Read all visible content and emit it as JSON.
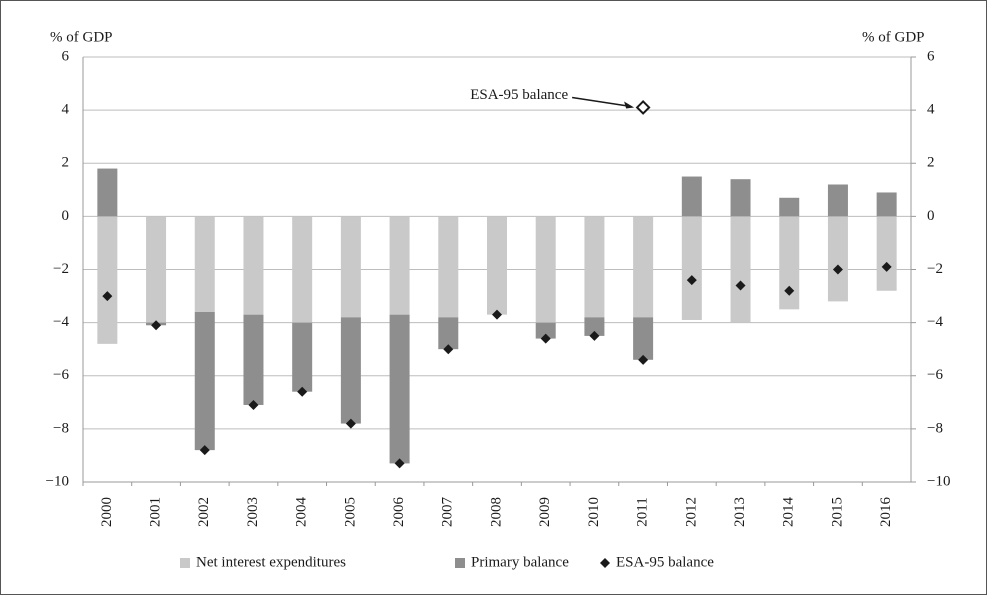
{
  "chart_data": {
    "type": "bar",
    "stacked": true,
    "y_label_left": "% of GDP",
    "y_label_right": "% of GDP",
    "categories": [
      "2000",
      "2001",
      "2002",
      "2003",
      "2004",
      "2005",
      "2006",
      "2007",
      "2008",
      "2009",
      "2010",
      "2011",
      "2012",
      "2013",
      "2014",
      "2015",
      "2016"
    ],
    "series": [
      {
        "name": "Net interest expenditures",
        "type": "bar",
        "color": "#c9c9c9",
        "values": [
          -4.8,
          -4.0,
          -3.6,
          -3.7,
          -4.0,
          -3.8,
          -3.7,
          -3.8,
          -3.7,
          -4.0,
          -3.8,
          -3.8,
          -3.9,
          -4.0,
          -3.5,
          -3.2,
          -2.8
        ]
      },
      {
        "name": "Primary balance",
        "type": "bar",
        "color": "#8e8e8e",
        "values": [
          1.8,
          -0.1,
          -5.2,
          -3.4,
          -2.6,
          -4.0,
          -5.6,
          -1.2,
          0,
          -0.6,
          -0.7,
          -1.6,
          1.5,
          1.4,
          0.7,
          1.2,
          0.9
        ]
      },
      {
        "name": "ESA-95 balance",
        "type": "scatter",
        "color": "#1a1a1a",
        "values": [
          -3.0,
          -4.1,
          -8.8,
          -7.1,
          -6.6,
          -7.8,
          -9.3,
          -5.0,
          -3.7,
          -4.6,
          -4.5,
          -5.4,
          -2.4,
          -2.6,
          -2.8,
          -2.0,
          -1.9
        ]
      }
    ],
    "annotations": [
      {
        "text": "ESA-95 balance",
        "category": "2011",
        "value": 4.1
      }
    ],
    "ylim": [
      -10,
      6
    ],
    "yticks": [
      {
        "value": -10,
        "label": "−10"
      },
      {
        "value": -8,
        "label": "−8"
      },
      {
        "value": -6,
        "label": "−6"
      },
      {
        "value": -4,
        "label": "−4"
      },
      {
        "value": -2,
        "label": "−2"
      },
      0,
      2,
      4,
      6
    ],
    "y2lim": [
      -10,
      6
    ],
    "y2ticks": [
      {
        "value": -10,
        "label": "−10"
      },
      {
        "value": -8,
        "label": "−8"
      },
      {
        "value": -6,
        "label": "−6"
      },
      {
        "value": -4,
        "label": "−4"
      },
      {
        "value": -2,
        "label": "−2"
      },
      0,
      2,
      4,
      6
    ],
    "grid": true,
    "legend": "bottom"
  }
}
